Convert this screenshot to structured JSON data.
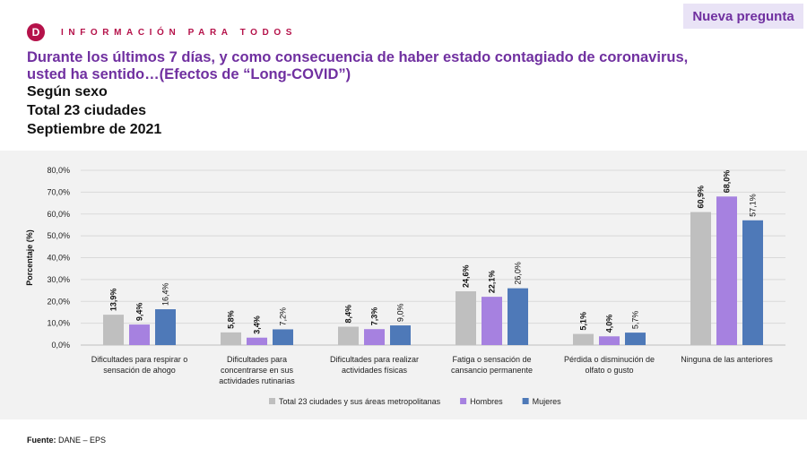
{
  "header": {
    "badge": "Nueva pregunta",
    "logo_letter": "D",
    "brand": "INFORMACIÓN PARA TODOS",
    "title": "Durante los últimos 7 días, y como consecuencia de haber estado contagiado de coronavirus, usted ha sentido…(Efectos de “Long-COVID”)",
    "subtitle_1": "Según sexo",
    "subtitle_2": "Total 23 ciudades",
    "subtitle_3": "Septiembre de 2021"
  },
  "colors": {
    "brand": "#b5124a",
    "title": "#7030a0",
    "badge_bg": "#e9e3f6",
    "panel_bg": "#f2f2f2"
  },
  "chart_data": {
    "type": "bar",
    "ylabel": "Porcentaje (%)",
    "ylim": [
      0,
      80
    ],
    "yticks": [
      "0,0%",
      "10,0%",
      "20,0%",
      "30,0%",
      "40,0%",
      "50,0%",
      "60,0%",
      "70,0%",
      "80,0%"
    ],
    "grid": true,
    "legend_position": "bottom",
    "categories": [
      [
        "Dificultades para respirar o",
        "sensación de ahogo"
      ],
      [
        "Dificultades para",
        "concentrarse en sus",
        "actividades rutinarias"
      ],
      [
        "Dificultades para realizar",
        "actividades físicas"
      ],
      [
        "Fatiga o sensación de",
        "cansancio permanente"
      ],
      [
        "Pérdida o disminución de",
        "olfato o gusto"
      ],
      [
        "Ninguna de las anteriores"
      ]
    ],
    "series": [
      {
        "name": "Total 23 ciudades y sus áreas metropolitanas",
        "color": "#bfbfbf",
        "values": [
          13.9,
          5.8,
          8.4,
          24.6,
          5.1,
          60.9
        ],
        "labels": [
          "13,9%",
          "5,8%",
          "8,4%",
          "24,6%",
          "5,1%",
          "60,9%"
        ],
        "bold": true
      },
      {
        "name": "Hombres",
        "color": "#a681e0",
        "values": [
          9.4,
          3.4,
          7.3,
          22.1,
          4.0,
          68.0
        ],
        "labels": [
          "9,4%",
          "3,4%",
          "7,3%",
          "22,1%",
          "4,0%",
          "68,0%"
        ],
        "bold": true
      },
      {
        "name": "Mujeres",
        "color": "#4e79b8",
        "values": [
          16.4,
          7.2,
          9.0,
          26.0,
          5.7,
          57.1
        ],
        "labels": [
          "16,4%",
          "7,2%",
          "9,0%",
          "26,0%",
          "5,7%",
          "57,1%"
        ],
        "bold": false
      }
    ]
  },
  "footer": {
    "source_label": "Fuente:",
    "source_text": " DANE – EPS"
  }
}
